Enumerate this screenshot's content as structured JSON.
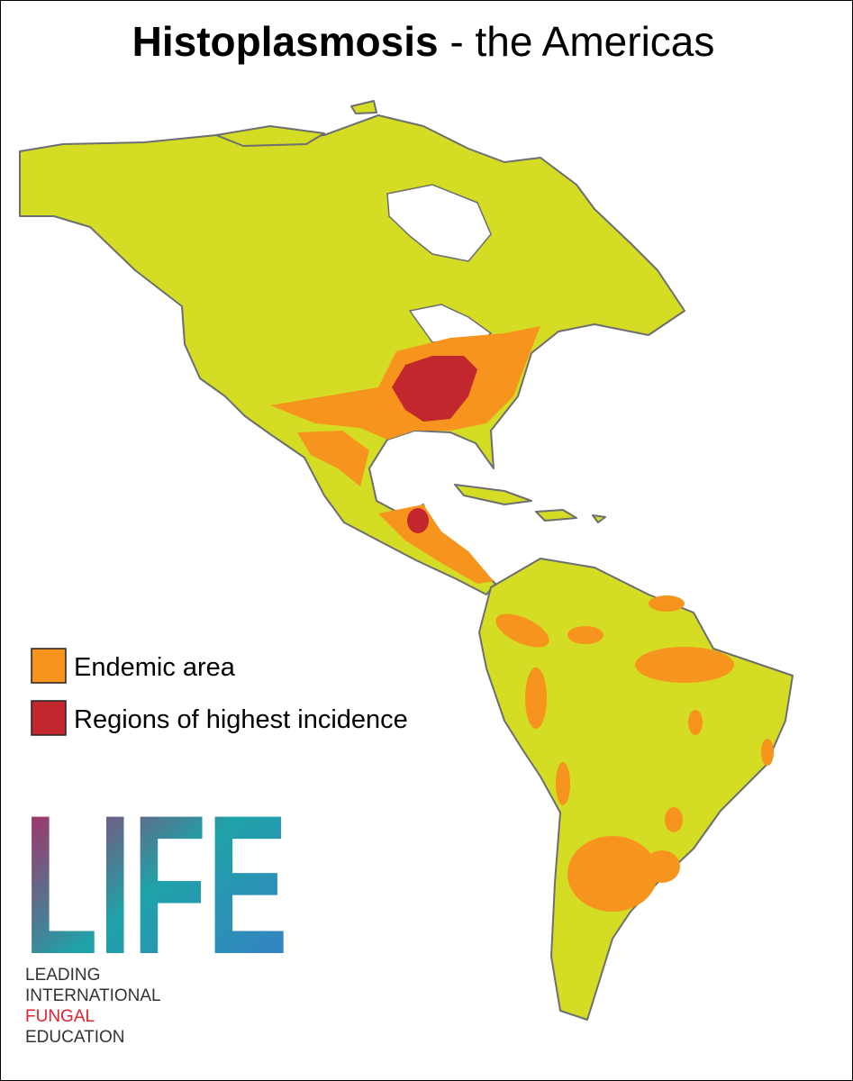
{
  "title": {
    "bold": "Histoplasmosis",
    "rest": " - the Americas"
  },
  "legend": [
    {
      "label": "Endemic area",
      "color": "#f7941d"
    },
    {
      "label": "Regions of highest incidence",
      "color": "#c1272d"
    }
  ],
  "logo": {
    "letters": "LIFE",
    "lines": [
      "LEADING",
      "INTERNATIONAL",
      "FUNGAL",
      "EDUCATION"
    ]
  }
}
